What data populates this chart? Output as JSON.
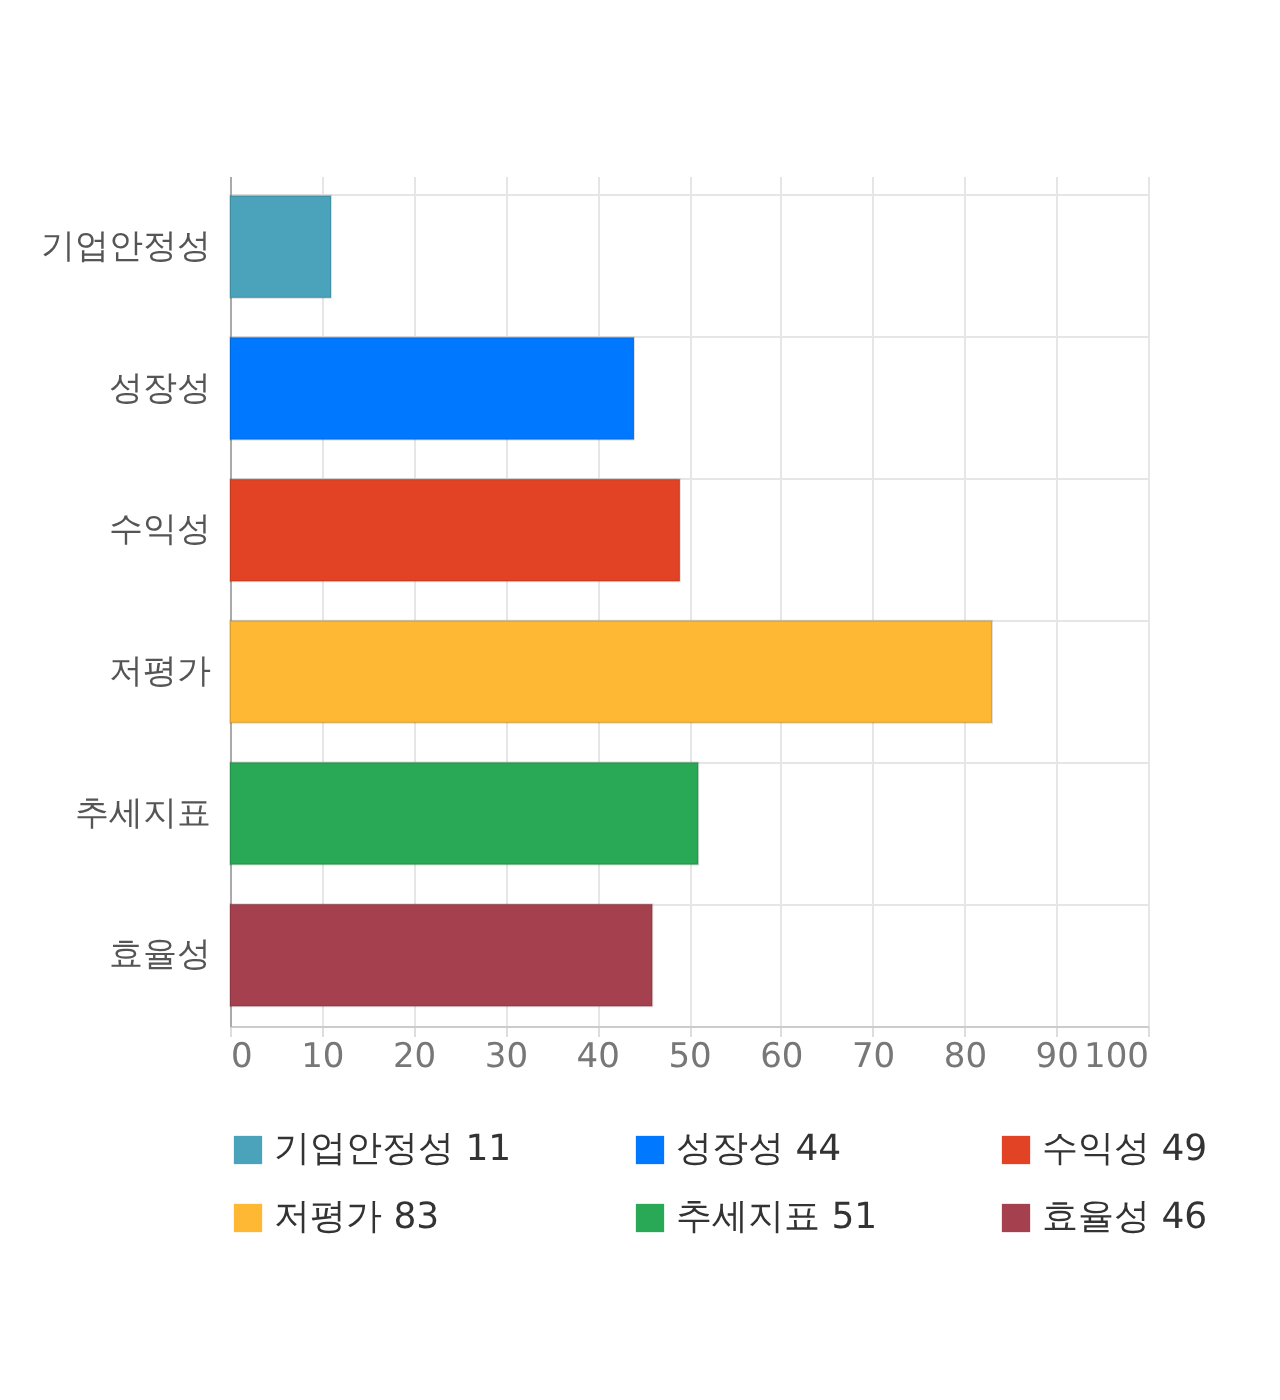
{
  "chart_data": {
    "type": "bar",
    "orientation": "horizontal",
    "categories": [
      "기업안정성",
      "성장성",
      "수익성",
      "저평가",
      "추세지표",
      "효율성"
    ],
    "series": [
      {
        "name": "기업안정성 11",
        "color": "#4aa3bb",
        "values": [
          11,
          null,
          null,
          null,
          null,
          null
        ]
      },
      {
        "name": "성장성 44",
        "color": "#0078ff",
        "values": [
          null,
          44,
          null,
          null,
          null,
          null
        ]
      },
      {
        "name": "수익성 49",
        "color": "#e24324",
        "values": [
          null,
          null,
          49,
          null,
          null,
          null
        ]
      },
      {
        "name": "저평가 83",
        "color": "#ffb833",
        "values": [
          null,
          null,
          null,
          83,
          null,
          null
        ]
      },
      {
        "name": "추세지표 51",
        "color": "#29a855",
        "values": [
          null,
          null,
          null,
          null,
          51,
          null
        ]
      },
      {
        "name": "효율성 46",
        "color": "#a5404f",
        "values": [
          null,
          null,
          null,
          null,
          null,
          46
        ]
      }
    ],
    "xlim": [
      0,
      100
    ],
    "xticks": [
      0,
      10,
      20,
      30,
      40,
      50,
      60,
      70,
      80,
      90,
      100
    ],
    "grid": true,
    "legend": "bottom"
  }
}
